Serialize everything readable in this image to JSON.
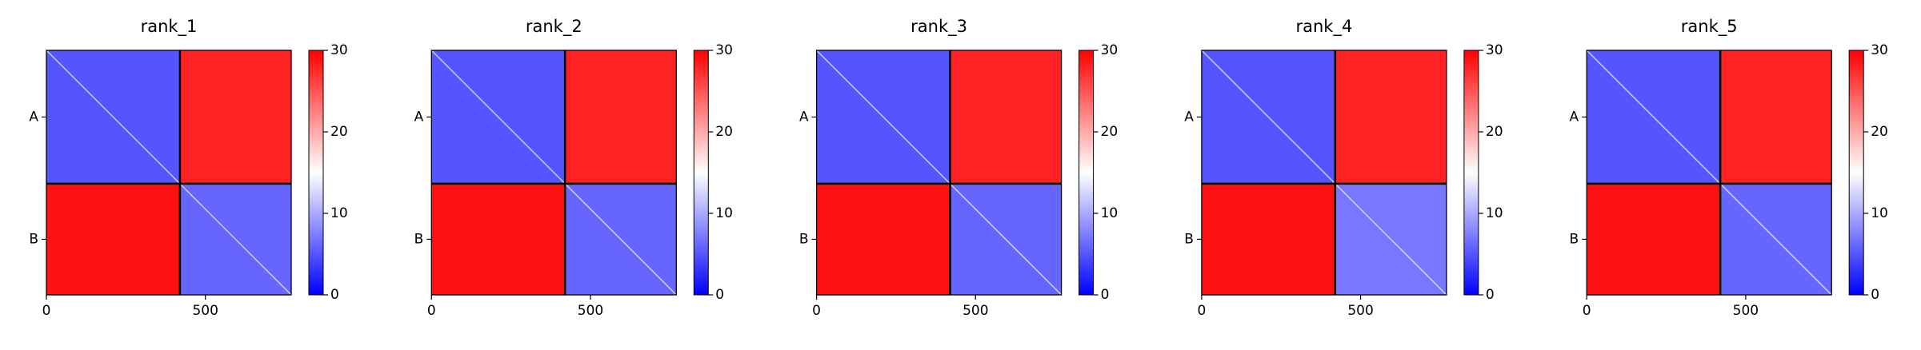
{
  "chart_data": [
    {
      "type": "heatmap",
      "title": "rank_1",
      "x_edges": [
        0,
        420,
        770
      ],
      "values": [
        [
          5,
          28
        ],
        [
          29,
          6
        ]
      ],
      "xlim": [
        0,
        770
      ],
      "xticks": [
        0,
        500
      ],
      "ylim": [
        770,
        0
      ],
      "yticks": [
        {
          "value": 210,
          "label": "A"
        },
        {
          "value": 595,
          "label": "B"
        }
      ],
      "clim": [
        0,
        30
      ],
      "cticks": [
        0,
        10,
        20,
        30
      ],
      "colormap": "bwr"
    },
    {
      "type": "heatmap",
      "title": "rank_2",
      "x_edges": [
        0,
        420,
        770
      ],
      "values": [
        [
          5,
          28
        ],
        [
          29,
          6
        ]
      ],
      "xlim": [
        0,
        770
      ],
      "xticks": [
        0,
        500
      ],
      "ylim": [
        770,
        0
      ],
      "yticks": [
        {
          "value": 210,
          "label": "A"
        },
        {
          "value": 595,
          "label": "B"
        }
      ],
      "clim": [
        0,
        30
      ],
      "cticks": [
        0,
        10,
        20,
        30
      ],
      "colormap": "bwr"
    },
    {
      "type": "heatmap",
      "title": "rank_3",
      "x_edges": [
        0,
        420,
        770
      ],
      "values": [
        [
          5,
          28
        ],
        [
          29,
          6
        ]
      ],
      "xlim": [
        0,
        770
      ],
      "xticks": [
        0,
        500
      ],
      "ylim": [
        770,
        0
      ],
      "yticks": [
        {
          "value": 210,
          "label": "A"
        },
        {
          "value": 595,
          "label": "B"
        }
      ],
      "clim": [
        0,
        30
      ],
      "cticks": [
        0,
        10,
        20,
        30
      ],
      "colormap": "bwr"
    },
    {
      "type": "heatmap",
      "title": "rank_4",
      "x_edges": [
        0,
        420,
        770
      ],
      "values": [
        [
          5,
          28
        ],
        [
          29,
          7
        ]
      ],
      "xlim": [
        0,
        770
      ],
      "xticks": [
        0,
        500
      ],
      "ylim": [
        770,
        0
      ],
      "yticks": [
        {
          "value": 210,
          "label": "A"
        },
        {
          "value": 595,
          "label": "B"
        }
      ],
      "clim": [
        0,
        30
      ],
      "cticks": [
        0,
        10,
        20,
        30
      ],
      "colormap": "bwr"
    },
    {
      "type": "heatmap",
      "title": "rank_5",
      "x_edges": [
        0,
        420,
        770
      ],
      "values": [
        [
          5,
          28
        ],
        [
          29,
          6
        ]
      ],
      "xlim": [
        0,
        770
      ],
      "xticks": [
        0,
        500
      ],
      "ylim": [
        770,
        0
      ],
      "yticks": [
        {
          "value": 210,
          "label": "A"
        },
        {
          "value": 595,
          "label": "B"
        }
      ],
      "clim": [
        0,
        30
      ],
      "cticks": [
        0,
        10,
        20,
        30
      ],
      "colormap": "bwr"
    }
  ]
}
